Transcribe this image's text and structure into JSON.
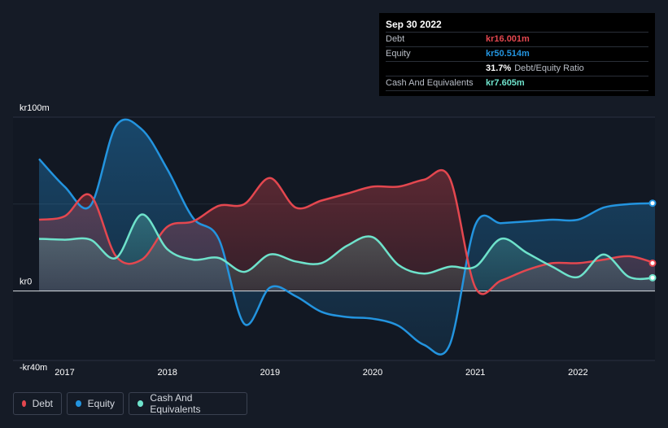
{
  "tooltip": {
    "date": "Sep 30 2022",
    "debt_label": "Debt",
    "debt_value": "kr16.001m",
    "equity_label": "Equity",
    "equity_value": "kr50.514m",
    "ratio_value": "31.7%",
    "ratio_label": "Debt/Equity Ratio",
    "cash_label": "Cash And Equivalents",
    "cash_value": "kr7.605m"
  },
  "legend": {
    "debt": "Debt",
    "equity": "Equity",
    "cash": "Cash And Equivalents"
  },
  "colors": {
    "debt": "#e4474f",
    "equity": "#2394df",
    "cash": "#6ee2cb",
    "background": "#151b26",
    "plot_bg": "#121823"
  },
  "chart_data": {
    "type": "area",
    "title": "",
    "xlabel": "",
    "ylabel": "",
    "ylim": [
      -40,
      100
    ],
    "xlim": [
      2016.75,
      2022.75
    ],
    "y_ticks": [
      {
        "value": 100,
        "label": "kr100m"
      },
      {
        "value": 0,
        "label": "kr0"
      },
      {
        "value": -40,
        "label": "-kr40m"
      }
    ],
    "x_ticks": [
      {
        "value": 2017,
        "label": "2017"
      },
      {
        "value": 2018,
        "label": "2018"
      },
      {
        "value": 2019,
        "label": "2019"
      },
      {
        "value": 2020,
        "label": "2020"
      },
      {
        "value": 2021,
        "label": "2021"
      },
      {
        "value": 2022,
        "label": "2022"
      }
    ],
    "series": [
      {
        "name": "Equity",
        "key": "equity",
        "points": [
          [
            2016.75,
            76
          ],
          [
            2017.0,
            60
          ],
          [
            2017.25,
            49
          ],
          [
            2017.5,
            95
          ],
          [
            2017.75,
            93
          ],
          [
            2018.0,
            70
          ],
          [
            2018.25,
            42
          ],
          [
            2018.5,
            30
          ],
          [
            2018.75,
            -19
          ],
          [
            2019.0,
            2
          ],
          [
            2019.25,
            -3
          ],
          [
            2019.5,
            -12
          ],
          [
            2019.75,
            -15
          ],
          [
            2020.0,
            -16
          ],
          [
            2020.25,
            -20
          ],
          [
            2020.5,
            -31
          ],
          [
            2020.75,
            -31
          ],
          [
            2021.0,
            38
          ],
          [
            2021.25,
            39
          ],
          [
            2021.5,
            40
          ],
          [
            2021.75,
            41
          ],
          [
            2022.0,
            41
          ],
          [
            2022.25,
            48
          ],
          [
            2022.5,
            50
          ],
          [
            2022.75,
            50.514
          ]
        ]
      },
      {
        "name": "Debt",
        "key": "debt",
        "points": [
          [
            2016.75,
            41
          ],
          [
            2017.0,
            43
          ],
          [
            2017.25,
            55
          ],
          [
            2017.5,
            20
          ],
          [
            2017.75,
            18
          ],
          [
            2018.0,
            37
          ],
          [
            2018.25,
            40
          ],
          [
            2018.5,
            49
          ],
          [
            2018.75,
            50
          ],
          [
            2019.0,
            65
          ],
          [
            2019.25,
            48
          ],
          [
            2019.5,
            52
          ],
          [
            2019.75,
            56
          ],
          [
            2020.0,
            60
          ],
          [
            2020.25,
            60
          ],
          [
            2020.5,
            64
          ],
          [
            2020.75,
            65
          ],
          [
            2021.0,
            2
          ],
          [
            2021.25,
            6
          ],
          [
            2021.5,
            12
          ],
          [
            2021.75,
            16
          ],
          [
            2022.0,
            16
          ],
          [
            2022.25,
            18
          ],
          [
            2022.5,
            20
          ],
          [
            2022.75,
            16.001
          ]
        ]
      },
      {
        "name": "Cash And Equivalents",
        "key": "cash",
        "points": [
          [
            2016.75,
            30
          ],
          [
            2017.0,
            29.5
          ],
          [
            2017.25,
            29.5
          ],
          [
            2017.5,
            19
          ],
          [
            2017.75,
            44
          ],
          [
            2018.0,
            24
          ],
          [
            2018.25,
            18
          ],
          [
            2018.5,
            19
          ],
          [
            2018.75,
            11
          ],
          [
            2019.0,
            21
          ],
          [
            2019.25,
            17
          ],
          [
            2019.5,
            16
          ],
          [
            2019.75,
            26
          ],
          [
            2020.0,
            31
          ],
          [
            2020.25,
            15
          ],
          [
            2020.5,
            10
          ],
          [
            2020.75,
            14
          ],
          [
            2021.0,
            14
          ],
          [
            2021.25,
            30
          ],
          [
            2021.5,
            22
          ],
          [
            2021.75,
            14
          ],
          [
            2022.0,
            8
          ],
          [
            2022.25,
            21
          ],
          [
            2022.5,
            8
          ],
          [
            2022.75,
            7.605
          ]
        ]
      }
    ]
  }
}
